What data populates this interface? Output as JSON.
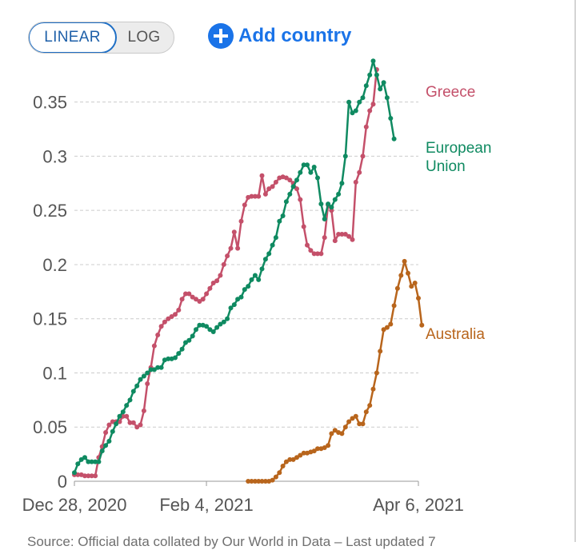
{
  "controls": {
    "linear_label": "LINEAR",
    "log_label": "LOG",
    "add_country_label": "Add country"
  },
  "source_text": "Source: Official data collated by Our World in Data – Last updated 7",
  "colors": {
    "greece": "#c4506a",
    "eu": "#0f8a61",
    "australia": "#b8651c",
    "grid": "#cccccc",
    "axis_text": "#555555",
    "accent": "#1a73e8"
  },
  "chart_data": {
    "type": "line",
    "title": "",
    "xlabel": "",
    "ylabel": "",
    "x_start": "Dec 28, 2020",
    "x_end_day": 99,
    "ylim": [
      0,
      0.38
    ],
    "yticks": [
      {
        "value": 0,
        "label": "0"
      },
      {
        "value": 0.05,
        "label": "0.05"
      },
      {
        "value": 0.1,
        "label": "0.1"
      },
      {
        "value": 0.15,
        "label": "0.15"
      },
      {
        "value": 0.2,
        "label": "0.2"
      },
      {
        "value": 0.25,
        "label": "0.25"
      },
      {
        "value": 0.3,
        "label": "0.3"
      },
      {
        "value": 0.35,
        "label": "0.35"
      }
    ],
    "xticks": [
      {
        "day": 0,
        "label": "Dec 28, 2020"
      },
      {
        "day": 38,
        "label": "Feb 4, 2021"
      },
      {
        "day": 99,
        "label": "Apr 6, 2021"
      }
    ],
    "series": [
      {
        "name": "Greece",
        "label_lines": [
          "Greece"
        ],
        "color_key": "greece",
        "points": [
          [
            0,
            0.006
          ],
          [
            1,
            0.006
          ],
          [
            2,
            0.006
          ],
          [
            3,
            0.005
          ],
          [
            4,
            0.005
          ],
          [
            5,
            0.005
          ],
          [
            6,
            0.005
          ],
          [
            7,
            0.022
          ],
          [
            8,
            0.032
          ],
          [
            9,
            0.045
          ],
          [
            10,
            0.052
          ],
          [
            11,
            0.055
          ],
          [
            12,
            0.055
          ],
          [
            13,
            0.055
          ],
          [
            14,
            0.06
          ],
          [
            15,
            0.06
          ],
          [
            16,
            0.054
          ],
          [
            17,
            0.054
          ],
          [
            18,
            0.05
          ],
          [
            19,
            0.052
          ],
          [
            20,
            0.065
          ],
          [
            21,
            0.09
          ],
          [
            22,
            0.105
          ],
          [
            23,
            0.125
          ],
          [
            24,
            0.135
          ],
          [
            25,
            0.143
          ],
          [
            26,
            0.147
          ],
          [
            27,
            0.15
          ],
          [
            28,
            0.152
          ],
          [
            29,
            0.154
          ],
          [
            30,
            0.158
          ],
          [
            31,
            0.168
          ],
          [
            32,
            0.173
          ],
          [
            33,
            0.173
          ],
          [
            34,
            0.17
          ],
          [
            35,
            0.168
          ],
          [
            36,
            0.166
          ],
          [
            37,
            0.168
          ],
          [
            38,
            0.173
          ],
          [
            39,
            0.178
          ],
          [
            40,
            0.183
          ],
          [
            41,
            0.185
          ],
          [
            42,
            0.19
          ],
          [
            43,
            0.2
          ],
          [
            44,
            0.208
          ],
          [
            45,
            0.215
          ],
          [
            46,
            0.23
          ],
          [
            47,
            0.215
          ],
          [
            48,
            0.24
          ],
          [
            49,
            0.255
          ],
          [
            50,
            0.262
          ],
          [
            51,
            0.263
          ],
          [
            52,
            0.263
          ],
          [
            53,
            0.263
          ],
          [
            54,
            0.282
          ],
          [
            55,
            0.265
          ],
          [
            56,
            0.27
          ],
          [
            57,
            0.272
          ],
          [
            58,
            0.276
          ],
          [
            59,
            0.28
          ],
          [
            60,
            0.281
          ],
          [
            61,
            0.28
          ],
          [
            62,
            0.278
          ],
          [
            63,
            0.275
          ],
          [
            64,
            0.27
          ],
          [
            65,
            0.26
          ],
          [
            66,
            0.235
          ],
          [
            67,
            0.218
          ],
          [
            68,
            0.213
          ],
          [
            69,
            0.21
          ],
          [
            70,
            0.21
          ],
          [
            71,
            0.21
          ],
          [
            72,
            0.225
          ],
          [
            73,
            0.255
          ],
          [
            74,
            0.25
          ],
          [
            75,
            0.222
          ],
          [
            76,
            0.228
          ],
          [
            77,
            0.228
          ],
          [
            78,
            0.228
          ],
          [
            79,
            0.226
          ],
          [
            80,
            0.223
          ],
          [
            81,
            0.276
          ],
          [
            82,
            0.285
          ],
          [
            83,
            0.3
          ],
          [
            84,
            0.327
          ],
          [
            85,
            0.342
          ],
          [
            86,
            0.348
          ],
          [
            87,
            0.38
          ]
        ]
      },
      {
        "name": "European Union",
        "label_lines": [
          "European",
          "Union"
        ],
        "color_key": "eu",
        "points": [
          [
            0,
            0.008
          ],
          [
            1,
            0.016
          ],
          [
            2,
            0.02
          ],
          [
            3,
            0.022
          ],
          [
            4,
            0.018
          ],
          [
            5,
            0.018
          ],
          [
            6,
            0.018
          ],
          [
            7,
            0.018
          ],
          [
            8,
            0.028
          ],
          [
            9,
            0.033
          ],
          [
            10,
            0.037
          ],
          [
            11,
            0.046
          ],
          [
            12,
            0.053
          ],
          [
            13,
            0.06
          ],
          [
            14,
            0.064
          ],
          [
            15,
            0.07
          ],
          [
            16,
            0.075
          ],
          [
            17,
            0.083
          ],
          [
            18,
            0.088
          ],
          [
            19,
            0.094
          ],
          [
            20,
            0.097
          ],
          [
            21,
            0.1
          ],
          [
            22,
            0.103
          ],
          [
            23,
            0.103
          ],
          [
            24,
            0.105
          ],
          [
            25,
            0.105
          ],
          [
            26,
            0.112
          ],
          [
            27,
            0.113
          ],
          [
            28,
            0.113
          ],
          [
            29,
            0.114
          ],
          [
            30,
            0.118
          ],
          [
            31,
            0.122
          ],
          [
            32,
            0.128
          ],
          [
            33,
            0.13
          ],
          [
            34,
            0.134
          ],
          [
            35,
            0.14
          ],
          [
            36,
            0.144
          ],
          [
            37,
            0.144
          ],
          [
            38,
            0.143
          ],
          [
            39,
            0.14
          ],
          [
            40,
            0.138
          ],
          [
            41,
            0.142
          ],
          [
            42,
            0.145
          ],
          [
            43,
            0.147
          ],
          [
            44,
            0.15
          ],
          [
            45,
            0.16
          ],
          [
            46,
            0.163
          ],
          [
            47,
            0.168
          ],
          [
            48,
            0.17
          ],
          [
            49,
            0.177
          ],
          [
            50,
            0.18
          ],
          [
            51,
            0.186
          ],
          [
            52,
            0.19
          ],
          [
            53,
            0.186
          ],
          [
            54,
            0.196
          ],
          [
            55,
            0.205
          ],
          [
            56,
            0.21
          ],
          [
            57,
            0.218
          ],
          [
            58,
            0.225
          ],
          [
            59,
            0.24
          ],
          [
            60,
            0.245
          ],
          [
            61,
            0.258
          ],
          [
            62,
            0.265
          ],
          [
            63,
            0.272
          ],
          [
            64,
            0.278
          ],
          [
            65,
            0.285
          ],
          [
            66,
            0.292
          ],
          [
            67,
            0.292
          ],
          [
            68,
            0.285
          ],
          [
            69,
            0.29
          ],
          [
            70,
            0.28
          ],
          [
            71,
            0.256
          ],
          [
            72,
            0.242
          ],
          [
            73,
            0.256
          ],
          [
            74,
            0.253
          ],
          [
            75,
            0.26
          ],
          [
            76,
            0.265
          ],
          [
            77,
            0.275
          ],
          [
            78,
            0.3
          ],
          [
            79,
            0.35
          ],
          [
            80,
            0.34
          ],
          [
            81,
            0.342
          ],
          [
            82,
            0.35
          ],
          [
            83,
            0.354
          ],
          [
            84,
            0.365
          ],
          [
            85,
            0.375
          ],
          [
            86,
            0.388
          ],
          [
            87,
            0.375
          ],
          [
            88,
            0.362
          ],
          [
            89,
            0.368
          ],
          [
            90,
            0.354
          ],
          [
            91,
            0.335
          ],
          [
            92,
            0.316
          ]
        ]
      },
      {
        "name": "Australia",
        "label_lines": [
          "Australia"
        ],
        "color_key": "australia",
        "points": [
          [
            50,
            0.0
          ],
          [
            51,
            0.0
          ],
          [
            52,
            0.0
          ],
          [
            53,
            0.0
          ],
          [
            54,
            0.0
          ],
          [
            55,
            0.0
          ],
          [
            56,
            0.0
          ],
          [
            57,
            0.001
          ],
          [
            58,
            0.004
          ],
          [
            59,
            0.008
          ],
          [
            60,
            0.014
          ],
          [
            61,
            0.018
          ],
          [
            62,
            0.02
          ],
          [
            63,
            0.02
          ],
          [
            64,
            0.022
          ],
          [
            65,
            0.024
          ],
          [
            66,
            0.026
          ],
          [
            67,
            0.026
          ],
          [
            68,
            0.027
          ],
          [
            69,
            0.028
          ],
          [
            70,
            0.03
          ],
          [
            71,
            0.03
          ],
          [
            72,
            0.031
          ],
          [
            73,
            0.033
          ],
          [
            74,
            0.044
          ],
          [
            75,
            0.047
          ],
          [
            76,
            0.045
          ],
          [
            77,
            0.044
          ],
          [
            78,
            0.05
          ],
          [
            79,
            0.055
          ],
          [
            80,
            0.058
          ],
          [
            81,
            0.06
          ],
          [
            82,
            0.053
          ],
          [
            83,
            0.053
          ],
          [
            84,
            0.064
          ],
          [
            85,
            0.07
          ],
          [
            86,
            0.085
          ],
          [
            87,
            0.1
          ],
          [
            88,
            0.12
          ],
          [
            89,
            0.14
          ],
          [
            90,
            0.142
          ],
          [
            91,
            0.145
          ],
          [
            92,
            0.162
          ],
          [
            93,
            0.178
          ],
          [
            94,
            0.19
          ],
          [
            95,
            0.203
          ],
          [
            96,
            0.192
          ],
          [
            97,
            0.18
          ],
          [
            98,
            0.183
          ],
          [
            99,
            0.169
          ],
          [
            100,
            0.144
          ]
        ]
      }
    ]
  }
}
